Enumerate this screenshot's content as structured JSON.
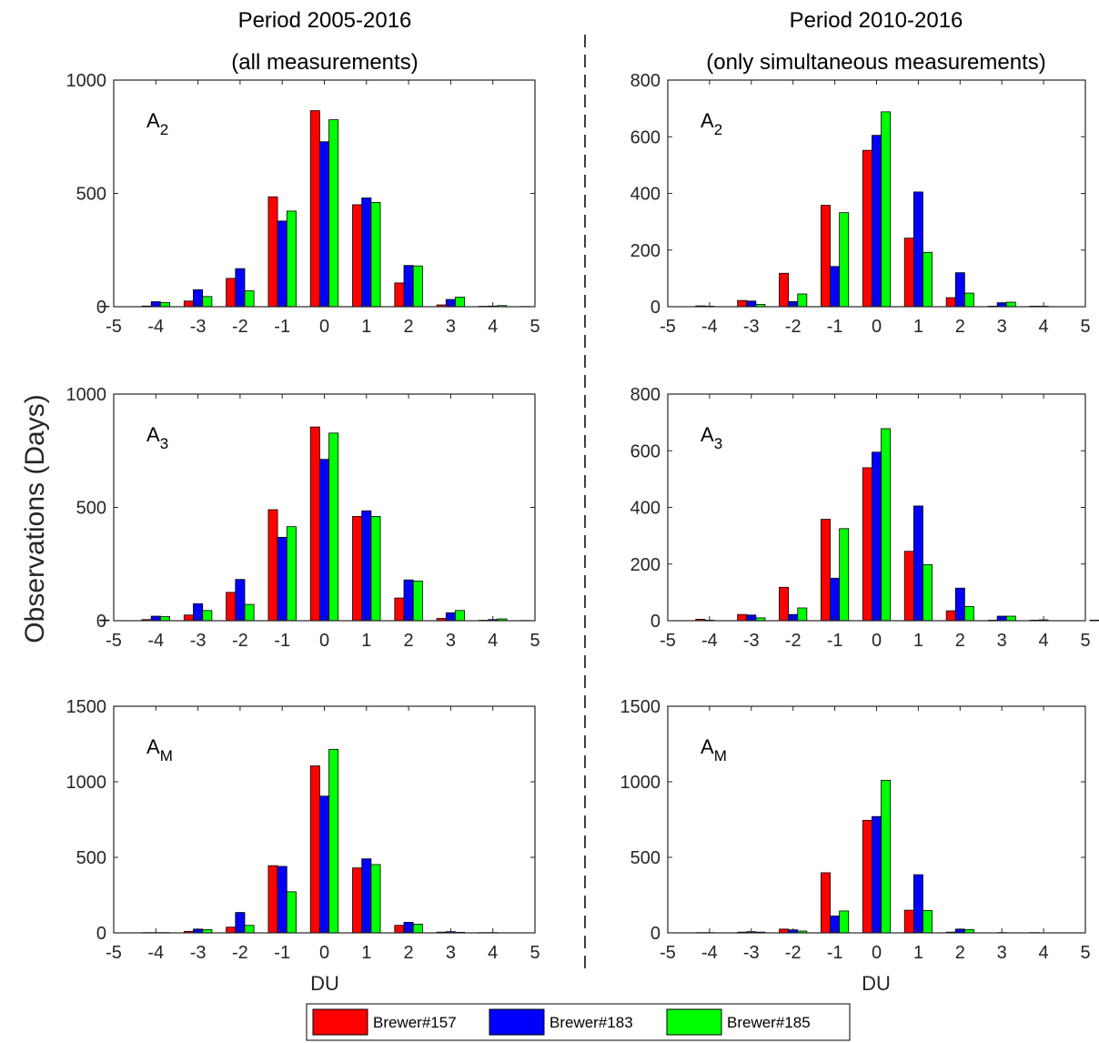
{
  "titles": {
    "left_line1": "Period 2005-2016",
    "left_line2": "(all measurements)",
    "right_line1": "Period 2010-2016",
    "right_line2": "(only simultaneous measurements)"
  },
  "ylabel": "Observations (Days)",
  "xlabel": "DU",
  "legend": [
    "Brewer#157",
    "Brewer#183",
    "Brewer#185"
  ],
  "colors": {
    "Brewer#157": "#ff0000",
    "Brewer#183": "#0000ff",
    "Brewer#185": "#00ff00"
  },
  "chart_data": [
    {
      "type": "bar",
      "panel": "left-A2",
      "annotation": "A",
      "annotation_sub": "2",
      "categories": [
        -5,
        -4,
        -3,
        -2,
        -1,
        0,
        1,
        2,
        3,
        4,
        5
      ],
      "ylim": [
        0,
        1000
      ],
      "yticks": [
        0,
        500,
        1000
      ],
      "series": [
        {
          "name": "Brewer#157",
          "values": [
            2,
            3,
            25,
            125,
            485,
            865,
            450,
            105,
            8,
            2,
            1
          ]
        },
        {
          "name": "Brewer#183",
          "values": [
            0,
            22,
            75,
            168,
            378,
            728,
            480,
            182,
            32,
            3,
            0
          ]
        },
        {
          "name": "Brewer#185",
          "values": [
            0,
            18,
            45,
            70,
            422,
            825,
            460,
            180,
            42,
            5,
            0
          ]
        }
      ]
    },
    {
      "type": "bar",
      "panel": "right-A2",
      "annotation": "A",
      "annotation_sub": "2",
      "categories": [
        -5,
        -4,
        -3,
        -2,
        -1,
        0,
        1,
        2,
        3,
        4,
        5
      ],
      "ylim": [
        0,
        800
      ],
      "yticks": [
        0,
        200,
        400,
        600,
        800
      ],
      "series": [
        {
          "name": "Brewer#157",
          "values": [
            0,
            3,
            22,
            118,
            358,
            552,
            242,
            32,
            2,
            2,
            0
          ]
        },
        {
          "name": "Brewer#183",
          "values": [
            0,
            2,
            20,
            18,
            142,
            605,
            405,
            120,
            14,
            2,
            0
          ]
        },
        {
          "name": "Brewer#185",
          "values": [
            0,
            0,
            8,
            45,
            332,
            688,
            192,
            48,
            16,
            0,
            0
          ]
        }
      ]
    },
    {
      "type": "bar",
      "panel": "left-A3",
      "annotation": "A",
      "annotation_sub": "3",
      "categories": [
        -5,
        -4,
        -3,
        -2,
        -1,
        0,
        1,
        2,
        3,
        4,
        5
      ],
      "ylim": [
        0,
        1000
      ],
      "yticks": [
        0,
        500,
        1000
      ],
      "series": [
        {
          "name": "Brewer#157",
          "values": [
            3,
            5,
            25,
            125,
            490,
            855,
            460,
            100,
            10,
            2,
            1
          ]
        },
        {
          "name": "Brewer#183",
          "values": [
            0,
            20,
            75,
            182,
            368,
            712,
            485,
            180,
            35,
            5,
            0
          ]
        },
        {
          "name": "Brewer#185",
          "values": [
            0,
            18,
            45,
            72,
            415,
            828,
            460,
            175,
            45,
            8,
            0
          ]
        }
      ]
    },
    {
      "type": "bar",
      "panel": "right-A3",
      "annotation": "A",
      "annotation_sub": "3",
      "categories": [
        -5,
        -4,
        -3,
        -2,
        -1,
        0,
        1,
        2,
        3,
        4,
        5
      ],
      "ylim": [
        0,
        800
      ],
      "yticks": [
        0,
        200,
        400,
        600,
        800
      ],
      "series": [
        {
          "name": "Brewer#157",
          "values": [
            0,
            5,
            22,
            118,
            358,
            540,
            245,
            35,
            2,
            2,
            0
          ]
        },
        {
          "name": "Brewer#183",
          "values": [
            0,
            2,
            20,
            22,
            150,
            595,
            405,
            115,
            16,
            3,
            0
          ]
        },
        {
          "name": "Brewer#185",
          "values": [
            0,
            0,
            10,
            45,
            325,
            678,
            198,
            50,
            16,
            0,
            2
          ]
        }
      ]
    },
    {
      "type": "bar",
      "panel": "left-AM",
      "annotation": "A",
      "annotation_sub": "M",
      "categories": [
        -5,
        -4,
        -3,
        -2,
        -1,
        0,
        1,
        2,
        3,
        4,
        5
      ],
      "ylim": [
        0,
        1500
      ],
      "yticks": [
        0,
        500,
        1000,
        1500
      ],
      "series": [
        {
          "name": "Brewer#157",
          "values": [
            0,
            2,
            10,
            38,
            445,
            1105,
            430,
            50,
            5,
            2,
            0
          ]
        },
        {
          "name": "Brewer#183",
          "values": [
            0,
            2,
            25,
            135,
            440,
            905,
            490,
            70,
            8,
            2,
            0
          ]
        },
        {
          "name": "Brewer#185",
          "values": [
            0,
            2,
            22,
            50,
            272,
            1215,
            452,
            58,
            4,
            0,
            0
          ]
        }
      ]
    },
    {
      "type": "bar",
      "panel": "right-AM",
      "annotation": "A",
      "annotation_sub": "M",
      "categories": [
        -5,
        -4,
        -3,
        -2,
        -1,
        0,
        1,
        2,
        3,
        4,
        5
      ],
      "ylim": [
        0,
        1500
      ],
      "yticks": [
        0,
        500,
        1000,
        1500
      ],
      "series": [
        {
          "name": "Brewer#157",
          "values": [
            0,
            2,
            5,
            25,
            398,
            745,
            150,
            5,
            0,
            2,
            0
          ]
        },
        {
          "name": "Brewer#183",
          "values": [
            0,
            2,
            8,
            20,
            112,
            770,
            385,
            25,
            2,
            0,
            0
          ]
        },
        {
          "name": "Brewer#185",
          "values": [
            0,
            0,
            5,
            12,
            145,
            1010,
            148,
            22,
            0,
            0,
            0
          ]
        }
      ]
    }
  ]
}
